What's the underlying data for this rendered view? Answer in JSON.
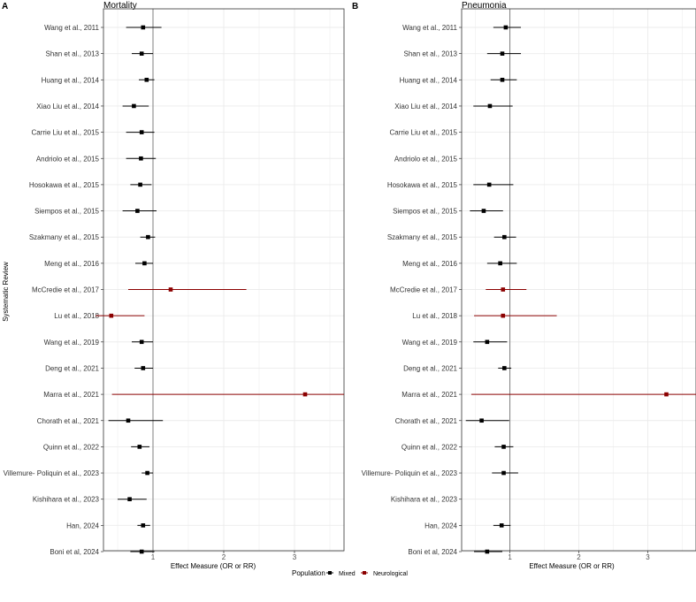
{
  "ylabel": "Systematic Review",
  "legend": {
    "title": "Population",
    "items": [
      {
        "label": "Mixed",
        "color": "#000000"
      },
      {
        "label": "Neurological",
        "color": "#8b0000"
      }
    ]
  },
  "chart_data": [
    {
      "type": "forest",
      "tag": "A",
      "title": "Mortality",
      "xlabel": "Effect Measure (OR or RR)",
      "xlim": [
        0.3,
        3.7
      ],
      "xticks": [
        1,
        2,
        3
      ],
      "reference_line": 1,
      "grid": true,
      "categories": [
        "Wang et al., 2011",
        "Shan et al., 2013",
        "Huang et al., 2014",
        "Xiao Liu et al., 2014",
        "Carrie Liu et al., 2015",
        "Andriolo et al., 2015",
        "Hosokawa et al., 2015",
        "Siempos et al., 2015",
        "Szakmany et al., 2015",
        "Meng et al., 2016",
        "McCredie et al., 2017",
        "Lu et al., 2018",
        "Wang et al., 2019",
        "Deng et al., 2021",
        "Marra et al., 2021",
        "Chorath et al., 2021",
        "Quinn et al., 2022",
        "Villemure- Poliquin et al., 2023",
        "Kishihara et al., 2023",
        "Han, 2024",
        "Boni et al, 2024"
      ],
      "points": [
        {
          "est": 0.86,
          "lo": 0.62,
          "hi": 1.12,
          "pop": "Mixed"
        },
        {
          "est": 0.84,
          "lo": 0.7,
          "hi": 1.0,
          "pop": "Mixed"
        },
        {
          "est": 0.91,
          "lo": 0.8,
          "hi": 1.02,
          "pop": "Mixed"
        },
        {
          "est": 0.73,
          "lo": 0.57,
          "hi": 0.94,
          "pop": "Mixed"
        },
        {
          "est": 0.84,
          "lo": 0.62,
          "hi": 1.02,
          "pop": "Mixed"
        },
        {
          "est": 0.83,
          "lo": 0.62,
          "hi": 1.04,
          "pop": "Mixed"
        },
        {
          "est": 0.82,
          "lo": 0.68,
          "hi": 0.98,
          "pop": "Mixed"
        },
        {
          "est": 0.78,
          "lo": 0.57,
          "hi": 1.05,
          "pop": "Mixed"
        },
        {
          "est": 0.93,
          "lo": 0.82,
          "hi": 1.03,
          "pop": "Mixed"
        },
        {
          "est": 0.88,
          "lo": 0.75,
          "hi": 1.0,
          "pop": "Mixed"
        },
        {
          "est": 1.25,
          "lo": 0.65,
          "hi": 2.32,
          "pop": "Neurological"
        },
        {
          "est": 0.41,
          "lo": 0.19,
          "hi": 0.88,
          "pop": "Neurological"
        },
        {
          "est": 0.84,
          "lo": 0.7,
          "hi": 1.0,
          "pop": "Mixed"
        },
        {
          "est": 0.86,
          "lo": 0.74,
          "hi": 1.0,
          "pop": "Mixed"
        },
        {
          "est": 3.15,
          "lo": 0.42,
          "hi": 3.7,
          "pop": "Neurological"
        },
        {
          "est": 0.65,
          "lo": 0.37,
          "hi": 1.14,
          "pop": "Mixed"
        },
        {
          "est": 0.81,
          "lo": 0.69,
          "hi": 0.95,
          "pop": "Mixed"
        },
        {
          "est": 0.92,
          "lo": 0.84,
          "hi": 1.0,
          "pop": "Mixed"
        },
        {
          "est": 0.67,
          "lo": 0.5,
          "hi": 0.91,
          "pop": "Mixed"
        },
        {
          "est": 0.86,
          "lo": 0.78,
          "hi": 0.96,
          "pop": "Mixed"
        },
        {
          "est": 0.84,
          "lo": 0.68,
          "hi": 1.02,
          "pop": "Mixed"
        }
      ]
    },
    {
      "type": "forest",
      "tag": "B",
      "title": "Pneumonia",
      "xlabel": "Effect Measure (OR or RR)",
      "xlim": [
        0.3,
        3.7
      ],
      "xticks": [
        1,
        2,
        3
      ],
      "reference_line": 1,
      "grid": true,
      "categories": [
        "Wang et al., 2011",
        "Shan et al., 2013",
        "Huang et al., 2014",
        "Xiao Liu et al., 2014",
        "Carrie Liu et al., 2015",
        "Andriolo et al., 2015",
        "Hosokawa et al., 2015",
        "Siempos et al., 2015",
        "Szakmany et al., 2015",
        "Meng et al., 2016",
        "McCredie et al., 2017",
        "Lu et al., 2018",
        "Wang et al., 2019",
        "Deng et al., 2021",
        "Marra et al., 2021",
        "Chorath et al., 2021",
        "Quinn et al., 2022",
        "Villemure- Poliquin et al., 2023",
        "Kishihara et al., 2023",
        "Han, 2024",
        "Boni et al, 2024"
      ],
      "points": [
        {
          "est": 0.94,
          "lo": 0.76,
          "hi": 1.16,
          "pop": "Mixed"
        },
        {
          "est": 0.89,
          "lo": 0.67,
          "hi": 1.16,
          "pop": "Mixed"
        },
        {
          "est": 0.89,
          "lo": 0.72,
          "hi": 1.1,
          "pop": "Mixed"
        },
        {
          "est": 0.71,
          "lo": 0.47,
          "hi": 1.04,
          "pop": "Mixed"
        },
        null,
        null,
        {
          "est": 0.7,
          "lo": 0.47,
          "hi": 1.05,
          "pop": "Mixed"
        },
        {
          "est": 0.62,
          "lo": 0.42,
          "hi": 0.9,
          "pop": "Mixed"
        },
        {
          "est": 0.92,
          "lo": 0.77,
          "hi": 1.09,
          "pop": "Mixed"
        },
        {
          "est": 0.86,
          "lo": 0.67,
          "hi": 1.1,
          "pop": "Mixed"
        },
        {
          "est": 0.9,
          "lo": 0.65,
          "hi": 1.24,
          "pop": "Neurological"
        },
        {
          "est": 0.9,
          "lo": 0.48,
          "hi": 1.68,
          "pop": "Neurological"
        },
        {
          "est": 0.67,
          "lo": 0.47,
          "hi": 0.96,
          "pop": "Mixed"
        },
        {
          "est": 0.92,
          "lo": 0.83,
          "hi": 1.02,
          "pop": "Mixed"
        },
        {
          "est": 3.27,
          "lo": 0.44,
          "hi": 3.7,
          "pop": "Neurological"
        },
        {
          "est": 0.59,
          "lo": 0.36,
          "hi": 0.99,
          "pop": "Mixed"
        },
        {
          "est": 0.91,
          "lo": 0.78,
          "hi": 1.05,
          "pop": "Mixed"
        },
        {
          "est": 0.91,
          "lo": 0.74,
          "hi": 1.12,
          "pop": "Mixed"
        },
        null,
        {
          "est": 0.88,
          "lo": 0.76,
          "hi": 1.01,
          "pop": "Mixed"
        },
        {
          "est": 0.67,
          "lo": 0.48,
          "hi": 0.89,
          "pop": "Mixed"
        }
      ]
    }
  ]
}
